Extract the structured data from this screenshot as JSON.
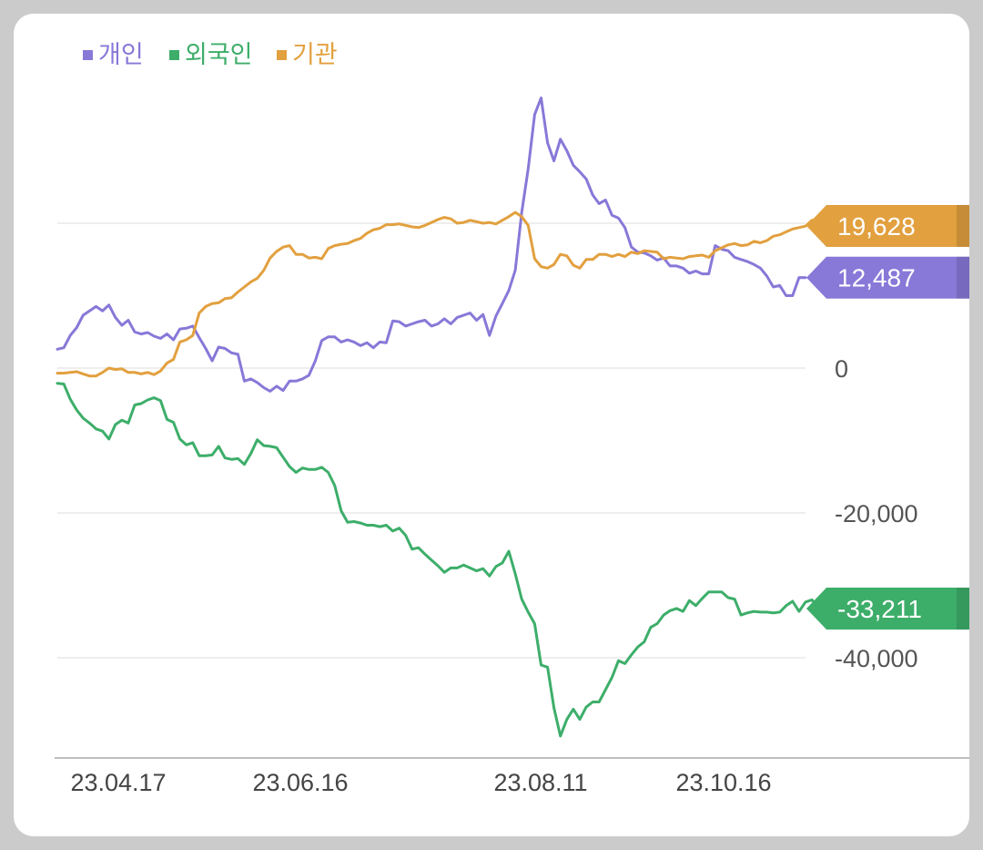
{
  "chart_data": {
    "type": "line",
    "title": "",
    "xlabel": "",
    "ylabel": "",
    "ylim": [
      -52000,
      40000
    ],
    "x_ticks": [
      "23.04.17",
      "23.06.16",
      "23.08.11",
      "23.10.16"
    ],
    "y_ticks": [
      0,
      -20000,
      -40000
    ],
    "y_tick_labels": [
      "0",
      "-20,000",
      "-40,000"
    ],
    "grid": true,
    "legend": "top-left",
    "series": [
      {
        "name": "개인",
        "color": "#8878d8",
        "last_label": "12,487",
        "values": [
          2600,
          2800,
          4500,
          5600,
          7300,
          7900,
          8500,
          7900,
          8700,
          7000,
          5900,
          6600,
          5000,
          4700,
          4900,
          4400,
          4100,
          4700,
          3900,
          5400,
          5500,
          5800,
          4200,
          2700,
          1000,
          2900,
          2700,
          2100,
          1900,
          -1800,
          -1500,
          -2000,
          -2700,
          -3200,
          -2500,
          -3100,
          -1800,
          -1800,
          -1500,
          -1000,
          1000,
          3800,
          4300,
          4300,
          3600,
          3900,
          3600,
          3100,
          3500,
          2800,
          3600,
          3500,
          6500,
          6400,
          5800,
          6100,
          6400,
          6600,
          5800,
          6100,
          6800,
          6100,
          7000,
          7300,
          7600,
          6600,
          7400,
          4500,
          7200,
          8900,
          10700,
          13500,
          21500,
          27500,
          35000,
          37300,
          31100,
          28600,
          31600,
          30000,
          28000,
          27100,
          26100,
          23900,
          22700,
          23200,
          21100,
          20700,
          19400,
          16700,
          16000,
          15900,
          15500,
          14900,
          15200,
          14100,
          14100,
          13800,
          13100,
          13400,
          13000,
          13000,
          16900,
          16400,
          16200,
          15300,
          15000,
          14700,
          14300,
          13800,
          12700,
          11200,
          11400,
          10000,
          10000,
          12500,
          12487
        ]
      },
      {
        "name": "외국인",
        "color": "#3dae6a",
        "last_label": "-33,211",
        "values": [
          -2100,
          -2200,
          -4300,
          -5800,
          -6900,
          -7600,
          -8400,
          -8700,
          -9800,
          -7800,
          -7200,
          -7600,
          -5100,
          -4900,
          -4400,
          -4100,
          -4500,
          -7100,
          -7500,
          -9800,
          -10600,
          -10300,
          -12100,
          -12100,
          -12000,
          -10800,
          -12400,
          -12600,
          -12500,
          -13300,
          -11800,
          -9900,
          -10700,
          -10800,
          -11000,
          -12300,
          -13600,
          -14400,
          -13800,
          -14000,
          -14000,
          -13700,
          -14400,
          -16200,
          -19700,
          -21300,
          -21200,
          -21400,
          -21700,
          -21700,
          -21900,
          -21700,
          -22500,
          -22100,
          -23100,
          -25000,
          -24800,
          -25700,
          -26500,
          -27300,
          -28200,
          -27600,
          -27600,
          -27200,
          -27600,
          -28000,
          -27700,
          -28700,
          -27400,
          -26900,
          -25300,
          -28400,
          -31900,
          -33700,
          -35300,
          -41000,
          -41300,
          -46900,
          -50800,
          -48500,
          -47100,
          -48500,
          -46800,
          -46100,
          -46100,
          -44400,
          -42700,
          -40400,
          -40800,
          -39600,
          -38500,
          -37800,
          -35800,
          -35300,
          -34100,
          -33500,
          -33200,
          -33600,
          -32100,
          -32800,
          -31800,
          -30900,
          -30900,
          -30900,
          -31700,
          -31900,
          -34100,
          -33800,
          -33600,
          -33700,
          -33700,
          -33800,
          -33700,
          -32800,
          -32200,
          -33600,
          -32300,
          -32000,
          -33100,
          -33211
        ]
      },
      {
        "name": "기관",
        "color": "#e2a03f",
        "last_label": "19,628",
        "values": [
          -700,
          -700,
          -600,
          -500,
          -800,
          -1100,
          -1100,
          -600,
          0,
          -200,
          -100,
          -600,
          -600,
          -800,
          -600,
          -900,
          -400,
          700,
          1200,
          3600,
          3900,
          4500,
          7600,
          8500,
          8900,
          9000,
          9600,
          9700,
          10500,
          11200,
          11900,
          12400,
          13500,
          15200,
          16100,
          16700,
          16900,
          15700,
          15700,
          15200,
          15300,
          15100,
          16500,
          16900,
          17100,
          17200,
          17600,
          17900,
          18600,
          19100,
          19300,
          19800,
          19800,
          19900,
          19700,
          19500,
          19400,
          19700,
          20100,
          20500,
          20800,
          20600,
          20000,
          20100,
          20400,
          20200,
          20000,
          20100,
          19900,
          20400,
          20900,
          21500,
          20900,
          19700,
          15100,
          14000,
          13800,
          14300,
          15700,
          15500,
          14200,
          13800,
          15000,
          15000,
          15700,
          15700,
          15400,
          15700,
          15400,
          16000,
          15800,
          16200,
          16100,
          16000,
          15100,
          15300,
          15200,
          15100,
          15400,
          15500,
          15600,
          15300,
          16200,
          16600,
          17000,
          17200,
          16900,
          17000,
          17500,
          17300,
          17600,
          18200,
          18400,
          18800,
          19200,
          19400,
          19600,
          20400,
          20500,
          19800,
          19628
        ]
      }
    ]
  }
}
